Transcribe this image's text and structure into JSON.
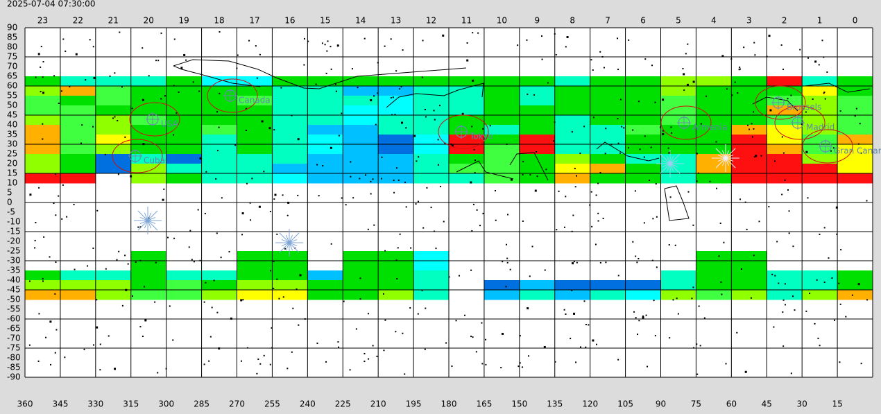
{
  "timestamp": "2025-07-04 07:30:00",
  "hours": [
    23,
    22,
    21,
    20,
    19,
    18,
    17,
    16,
    15,
    14,
    13,
    12,
    11,
    10,
    9,
    8,
    7,
    6,
    5,
    4,
    3,
    2,
    1,
    0
  ],
  "degrees": [
    360,
    345,
    330,
    315,
    300,
    285,
    270,
    255,
    240,
    225,
    210,
    195,
    180,
    165,
    150,
    135,
    120,
    105,
    90,
    75,
    60,
    45,
    30,
    15
  ],
  "declinations": [
    90,
    85,
    80,
    75,
    70,
    65,
    60,
    55,
    50,
    45,
    40,
    35,
    30,
    25,
    20,
    15,
    10,
    5,
    0,
    -5,
    -10,
    -15,
    -20,
    -25,
    -30,
    -35,
    -40,
    -45,
    -50,
    -55,
    -60,
    -65,
    -70,
    -75,
    -80,
    -85,
    -90
  ],
  "places": [
    "Cuba",
    "USA",
    "Canada",
    "Tokyo",
    "Armenia",
    "Madrid",
    "Gran Canaria",
    "Brussels"
  ],
  "palette": {
    "G": "#00e000",
    "L": "#40ff40",
    "T": "#00ffc0",
    "C": "#00ffff",
    "S": "#00c0ff",
    "B": "#0070e0",
    "Y": "#ffff00",
    "O": "#ffb000",
    "R": "#ff1010",
    "H": "#90ff00"
  },
  "north_rows": [
    "GTTTGCCGGGGGGGGTGGHHGRTG",
    "HOLGGGGTTSSTTGTGGGHGGGYG",
    "LGLGGGLTTTCTTGTGGGLGGLHL",
    "LLGGGGGTTCCTTGGGGGLGGOHL",
    "HLHLGGGTTCTTGGGTGGLGGLHL",
    "OLHGGLGTSSTTGTGTTLGGOYHL",
    "OLYGGTGTCSBCRGRTTGGGRYLO",
    "OLHGGTGTCSBCRLRTTGGGROLY",
    "HGBTBTTTSSSTGLGHGTTORRHY",
    "HGBHTTTSSSSTLLGYOGTORRRY",
    "RRWHGTTCSSSTTLGOGGTGRRRR"
  ],
  "south_rows": [
    "WWWGWWGGWGGCWWWWWWWGGWWW",
    "WWWGWWGGWGGCWWWWWWWGGWWW",
    "GTTGTTGGSGGTWWWWWWTGGTTG",
    "HHHGLGHHGGGTWBSBBBTGGTTG",
    "OOHLLHYYGGHTWSTSTCHLHTHO"
  ]
}
